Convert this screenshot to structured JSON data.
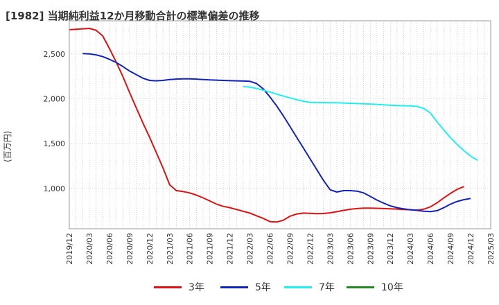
{
  "chart_data": {
    "type": "line",
    "title": "[1982]  当期純利益12か月移動合計の標準偏差の推移",
    "ylabel": "(百万円)",
    "xlabel": "",
    "ylim": [
      550,
      2870
    ],
    "yticks": [
      1000,
      1500,
      2000,
      2500
    ],
    "ytick_labels": [
      "1,000",
      "1,500",
      "2,000",
      "2,500"
    ],
    "x_start": "2019-12",
    "x_end": "2025-03",
    "xtick_labels": [
      "2019/12",
      "2020/03",
      "2020/06",
      "2020/09",
      "2020/12",
      "2021/03",
      "2021/06",
      "2021/09",
      "2021/12",
      "2022/03",
      "2022/06",
      "2022/09",
      "2022/12",
      "2023/03",
      "2023/06",
      "2023/09",
      "2023/12",
      "2024/03",
      "2024/06",
      "2024/09",
      "2024/12",
      "2025/03"
    ],
    "grid": true,
    "legend_position": "bottom",
    "series": [
      {
        "name": "3年",
        "color": "#dd1111",
        "points": [
          [
            0,
            2770
          ],
          [
            1,
            2775
          ],
          [
            2,
            2780
          ],
          [
            3,
            2785
          ],
          [
            4,
            2765
          ],
          [
            5,
            2700
          ],
          [
            6,
            2560
          ],
          [
            7,
            2410
          ],
          [
            8,
            2250
          ],
          [
            9,
            2070
          ],
          [
            10,
            1900
          ],
          [
            11,
            1730
          ],
          [
            12,
            1570
          ],
          [
            13,
            1400
          ],
          [
            14,
            1230
          ],
          [
            15,
            1040
          ],
          [
            16,
            975
          ],
          [
            17,
            965
          ],
          [
            18,
            950
          ],
          [
            19,
            925
          ],
          [
            20,
            895
          ],
          [
            21,
            860
          ],
          [
            22,
            825
          ],
          [
            23,
            800
          ],
          [
            24,
            785
          ],
          [
            25,
            765
          ],
          [
            26,
            745
          ],
          [
            27,
            725
          ],
          [
            28,
            695
          ],
          [
            29,
            665
          ],
          [
            30,
            630
          ],
          [
            31,
            625
          ],
          [
            32,
            645
          ],
          [
            33,
            690
          ],
          [
            34,
            715
          ],
          [
            35,
            725
          ],
          [
            36,
            722
          ],
          [
            37,
            718
          ],
          [
            38,
            720
          ],
          [
            39,
            728
          ],
          [
            40,
            740
          ],
          [
            41,
            755
          ],
          [
            42,
            767
          ],
          [
            43,
            775
          ],
          [
            44,
            780
          ],
          [
            45,
            780
          ],
          [
            46,
            778
          ],
          [
            47,
            775
          ],
          [
            48,
            772
          ],
          [
            49,
            770
          ],
          [
            50,
            765
          ],
          [
            51,
            762
          ],
          [
            52,
            758
          ],
          [
            53,
            768
          ],
          [
            54,
            795
          ],
          [
            55,
            840
          ],
          [
            56,
            895
          ],
          [
            57,
            945
          ],
          [
            58,
            990
          ],
          [
            59,
            1020
          ]
        ]
      },
      {
        "name": "5年",
        "color": "#1122bb",
        "points": [
          [
            2,
            2505
          ],
          [
            3,
            2500
          ],
          [
            4,
            2490
          ],
          [
            5,
            2470
          ],
          [
            6,
            2440
          ],
          [
            7,
            2405
          ],
          [
            8,
            2360
          ],
          [
            9,
            2310
          ],
          [
            10,
            2270
          ],
          [
            11,
            2230
          ],
          [
            12,
            2205
          ],
          [
            13,
            2200
          ],
          [
            14,
            2205
          ],
          [
            15,
            2215
          ],
          [
            16,
            2220
          ],
          [
            17,
            2222
          ],
          [
            18,
            2222
          ],
          [
            19,
            2220
          ],
          [
            20,
            2215
          ],
          [
            21,
            2210
          ],
          [
            22,
            2208
          ],
          [
            23,
            2205
          ],
          [
            24,
            2202
          ],
          [
            25,
            2200
          ],
          [
            26,
            2198
          ],
          [
            27,
            2195
          ],
          [
            28,
            2170
          ],
          [
            29,
            2110
          ],
          [
            30,
            2020
          ],
          [
            31,
            1920
          ],
          [
            32,
            1810
          ],
          [
            33,
            1690
          ],
          [
            34,
            1570
          ],
          [
            35,
            1450
          ],
          [
            36,
            1330
          ],
          [
            37,
            1210
          ],
          [
            38,
            1090
          ],
          [
            39,
            985
          ],
          [
            40,
            960
          ],
          [
            41,
            975
          ],
          [
            42,
            975
          ],
          [
            43,
            970
          ],
          [
            44,
            950
          ],
          [
            45,
            910
          ],
          [
            46,
            870
          ],
          [
            47,
            835
          ],
          [
            48,
            805
          ],
          [
            49,
            785
          ],
          [
            50,
            772
          ],
          [
            51,
            762
          ],
          [
            52,
            755
          ],
          [
            53,
            745
          ],
          [
            54,
            742
          ],
          [
            55,
            752
          ],
          [
            56,
            785
          ],
          [
            57,
            825
          ],
          [
            58,
            855
          ],
          [
            59,
            875
          ],
          [
            60,
            888
          ]
        ]
      },
      {
        "name": "7年",
        "color": "#22eeee",
        "points": [
          [
            26,
            2138
          ],
          [
            27,
            2130
          ],
          [
            28,
            2115
          ],
          [
            29,
            2095
          ],
          [
            30,
            2075
          ],
          [
            31,
            2052
          ],
          [
            32,
            2030
          ],
          [
            33,
            2010
          ],
          [
            34,
            1990
          ],
          [
            35,
            1972
          ],
          [
            36,
            1960
          ],
          [
            37,
            1958
          ],
          [
            38,
            1957
          ],
          [
            39,
            1956
          ],
          [
            40,
            1955
          ],
          [
            41,
            1953
          ],
          [
            42,
            1950
          ],
          [
            43,
            1947
          ],
          [
            44,
            1944
          ],
          [
            45,
            1941
          ],
          [
            46,
            1937
          ],
          [
            47,
            1932
          ],
          [
            48,
            1928
          ],
          [
            49,
            1925
          ],
          [
            50,
            1922
          ],
          [
            51,
            1920
          ],
          [
            52,
            1915
          ],
          [
            53,
            1892
          ],
          [
            54,
            1840
          ],
          [
            55,
            1740
          ],
          [
            56,
            1650
          ],
          [
            57,
            1565
          ],
          [
            58,
            1490
          ],
          [
            59,
            1420
          ],
          [
            60,
            1360
          ],
          [
            61,
            1315
          ]
        ]
      },
      {
        "name": "10年",
        "color": "#228822",
        "points": []
      }
    ]
  }
}
